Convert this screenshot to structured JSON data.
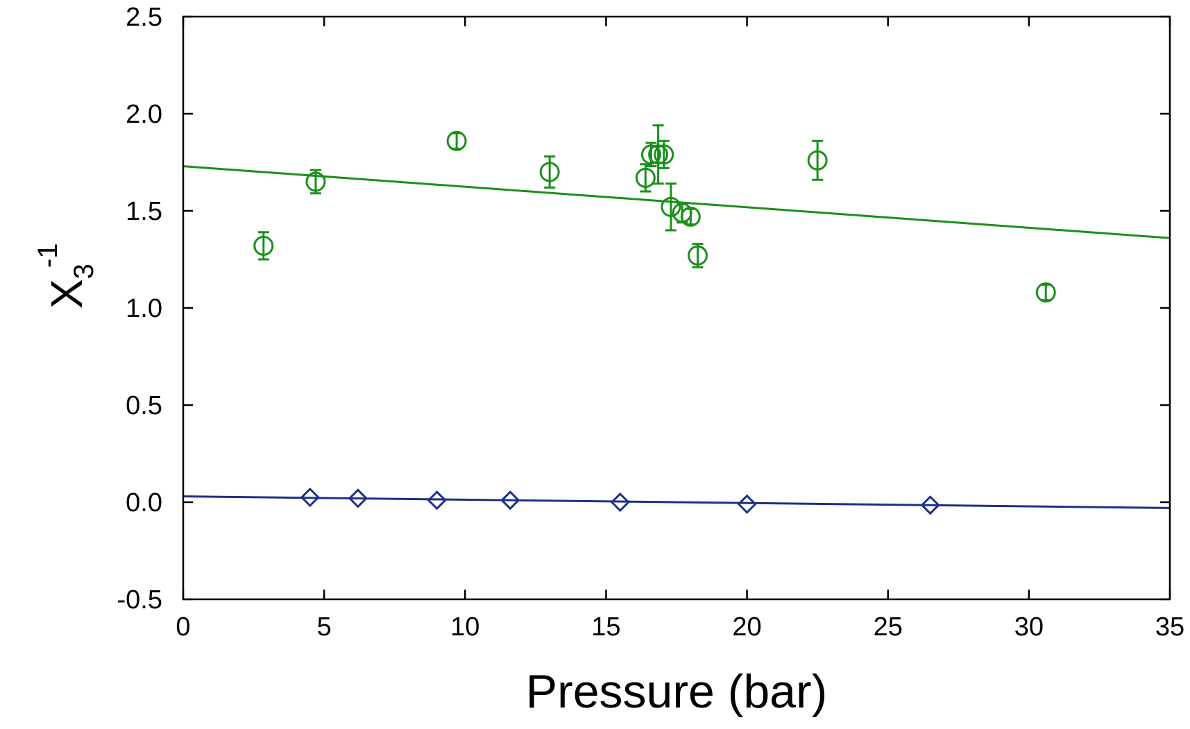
{
  "chart_data": {
    "type": "scatter",
    "title": "",
    "xlabel": "Pressure (bar)",
    "ylabel": {
      "base": "X",
      "subscript": "3",
      "superscript": "-1"
    },
    "xlim": [
      0,
      35
    ],
    "ylim": [
      -0.5,
      2.5
    ],
    "xticks": [
      0,
      5,
      10,
      15,
      20,
      25,
      30,
      35
    ],
    "xtick_labels": [
      "0",
      "5",
      "10",
      "15",
      "20",
      "25",
      "30",
      "35"
    ],
    "yticks": [
      -0.5,
      0.0,
      0.5,
      1.0,
      1.5,
      2.0,
      2.5
    ],
    "ytick_labels": [
      "-0.5",
      "0.0",
      "0.5",
      "1.0",
      "1.5",
      "2.0",
      "2.5"
    ],
    "grid": false,
    "legend": "none",
    "series": [
      {
        "name": "green circles",
        "marker": "circle",
        "color": "#1a8f1a",
        "x": [
          2.85,
          4.7,
          9.7,
          13.0,
          16.4,
          16.6,
          16.85,
          17.05,
          17.3,
          17.7,
          18.0,
          18.25,
          22.5,
          30.6
        ],
        "y": [
          1.32,
          1.65,
          1.86,
          1.7,
          1.67,
          1.79,
          1.79,
          1.79,
          1.52,
          1.49,
          1.47,
          1.27,
          1.76,
          1.08
        ],
        "err": [
          0.07,
          0.06,
          0.04,
          0.08,
          0.07,
          0.06,
          0.15,
          0.07,
          0.12,
          0.05,
          0.04,
          0.06,
          0.1,
          0.04
        ],
        "fit": {
          "x": [
            0,
            35
          ],
          "y": [
            1.73,
            1.36
          ]
        }
      },
      {
        "name": "blue diamonds",
        "marker": "diamond",
        "color": "#1c2f8c",
        "x": [
          4.5,
          6.2,
          9.0,
          11.6,
          15.5,
          20.0,
          26.5
        ],
        "y": [
          0.025,
          0.02,
          0.01,
          0.01,
          0.0,
          -0.01,
          -0.015
        ],
        "fit": {
          "x": [
            0,
            35
          ],
          "y": [
            0.03,
            -0.03
          ]
        }
      }
    ]
  }
}
